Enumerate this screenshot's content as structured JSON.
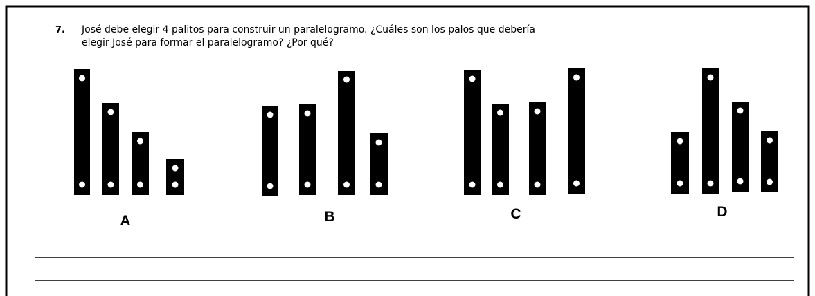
{
  "question": {
    "number": "7.",
    "lines": [
      "José debe elegir 4 palitos para construir un paralelogramo. ¿Cuáles son los palos que debería",
      "elegir José para formar el paralelogramo? ¿Por qué?"
    ]
  },
  "options": [
    "A",
    "B",
    "C",
    "D"
  ]
}
